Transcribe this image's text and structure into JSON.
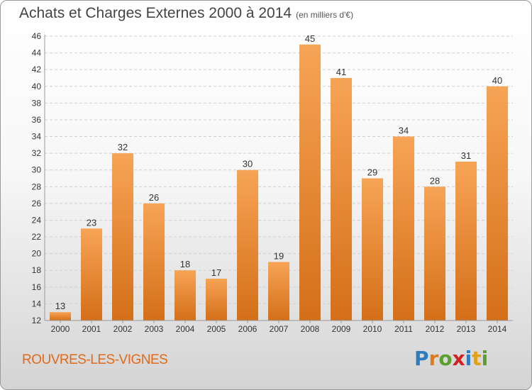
{
  "header": {
    "title": "Achats et Charges Externes 2000 à 2014",
    "unit": "(en milliers d'€)"
  },
  "footer": {
    "commune": "ROUVRES-LES-VIGNES",
    "logo_text": "Proxiti",
    "logo_letters": [
      {
        "ch": "P",
        "color": "#2e7bbf"
      },
      {
        "ch": "r",
        "color": "#e07a1a"
      },
      {
        "ch": "o",
        "color": "#5aa02c"
      },
      {
        "ch": "x",
        "color": "#d21f1f"
      },
      {
        "ch": "i",
        "color": "#2e7bbf"
      },
      {
        "ch": "t",
        "color": "#e0a21a"
      },
      {
        "ch": "i",
        "color": "#5aa02c"
      }
    ]
  },
  "colors": {
    "bar_light": "#f7a456",
    "bar_dark": "#d46f18",
    "grid": "#cfcfcf",
    "axis": "#9a9a9a",
    "text": "#333333"
  },
  "chart_data": {
    "type": "bar",
    "title": "Achats et Charges Externes 2000 à 2014",
    "subtitle": "(en milliers d'€)",
    "xlabel": "",
    "ylabel": "",
    "categories": [
      "2000",
      "2001",
      "2002",
      "2003",
      "2004",
      "2005",
      "2006",
      "2007",
      "2008",
      "2009",
      "2010",
      "2011",
      "2012",
      "2013",
      "2014"
    ],
    "values": [
      13,
      23,
      32,
      26,
      18,
      17,
      30,
      19,
      45,
      41,
      29,
      34,
      28,
      31,
      40
    ],
    "ylim": [
      12,
      46
    ],
    "yticks": [
      12,
      14,
      16,
      18,
      20,
      22,
      24,
      26,
      28,
      30,
      32,
      34,
      36,
      38,
      40,
      42,
      44,
      46
    ],
    "grid": true,
    "data_labels": true
  }
}
